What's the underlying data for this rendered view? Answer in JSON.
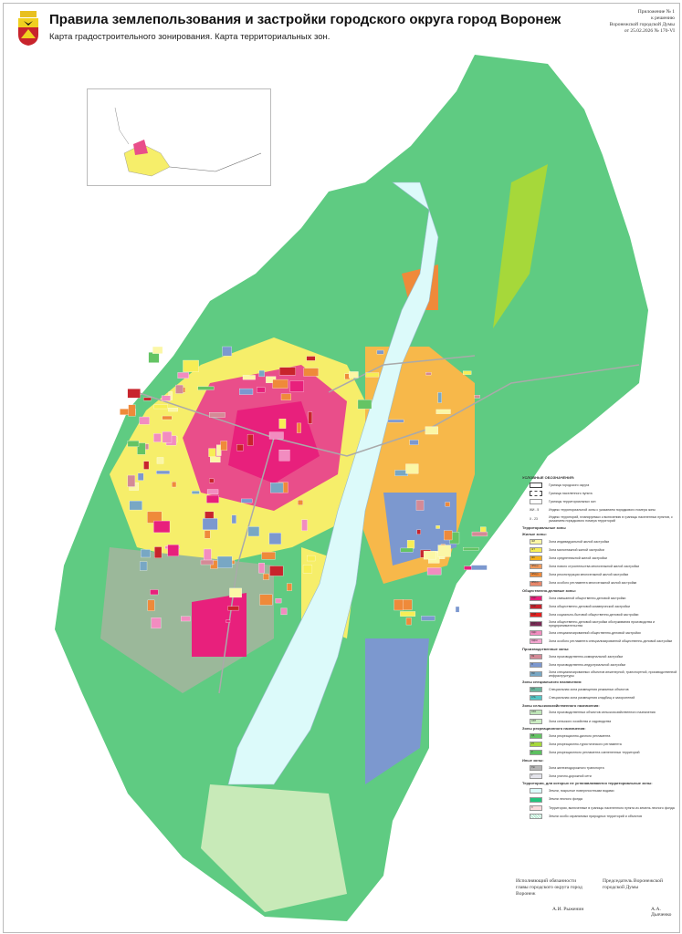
{
  "header": {
    "title": "Правила землепользования и застройки городского округа город Воронеж",
    "subtitle": "Карта градостроительного зонирования. Карта территориальных зон.",
    "appendix": [
      "Приложение № 1",
      "к решению",
      "Воронежской городской Думы",
      "от 25.02.2026   № 170-VI"
    ]
  },
  "legend": {
    "title": "УСЛОВНЫЕ ОБОЗНАЧЕНИЯ:",
    "boundaries": [
      {
        "label": "Граница городского округа"
      },
      {
        "label": "Граница населенного пункта"
      },
      {
        "label": "Границы территориальных зон"
      }
    ],
    "indexes": [
      {
        "code": "ЖИ - 5",
        "label": "Индекс территориальной зоны с указанием порядкового номера зоны"
      },
      {
        "code": "Х - 23",
        "label": "Индекс территорий, планируемых к включению в границы населенных пунктов, с указанием порядкового номера территорий"
      }
    ],
    "zones_title": "Территориальные зоны",
    "groups": [
      {
        "title": "Жилые зоны:",
        "items": [
          {
            "code": "ЖИ",
            "color": "#fbf7a6",
            "label": "Зона индивидуальной жилой застройки"
          },
          {
            "code": "ЖТ",
            "color": "#f7ee55",
            "label": "Зона малоэтажной жилой застройки"
          },
          {
            "code": "ЖС",
            "color": "#f5b21a",
            "label": "Зона среднеэтажной жилой застройки"
          },
          {
            "code": "ЖМ(н)",
            "color": "#f19a5c",
            "label": "Зона нового строительства многоэтажной жилой застройки"
          },
          {
            "code": "ЖМ(р)",
            "color": "#ef8a3a",
            "label": "Зона реконструкции многоэтажной жилой застройки"
          },
          {
            "code": "ЖМ(о)",
            "color": "#e8876a",
            "label": "Зона особого регламента многоэтажной жилой застройки"
          }
        ]
      },
      {
        "title": "Общественно-деловые зоны:",
        "items": [
          {
            "code": "ОДС",
            "color": "#e8207c",
            "label": "Зона смешанной общественно-деловой застройки"
          },
          {
            "code": "ОДК",
            "color": "#c8242c",
            "label": "Зона общественно-деловой коммерческой застройки"
          },
          {
            "code": "ОДБ",
            "color": "#e5201f",
            "label": "Зона социально-бытовой общественно-деловой застройки"
          },
          {
            "code": "ОДП",
            "color": "#7a2a55",
            "label": "Зона общественно-деловой застройки обслуживания производства и предпринимательства"
          },
          {
            "code": "ОДС",
            "color": "#f28cc0",
            "label": "Зона специализированной общественно-деловой застройки"
          },
          {
            "code": "ОДСо",
            "color": "#f4a6d0",
            "label": "Зона особого регламента специализированной общественно-деловой застройки"
          }
        ]
      },
      {
        "title": "Производственные зоны:",
        "items": [
          {
            "code": "ПК",
            "color": "#d48a96",
            "label": "Зона производственно-коммунальной застройки"
          },
          {
            "code": "П",
            "color": "#7c98cf",
            "label": "Зона производственно-индустриальной застройки"
          },
          {
            "code": "ПИ",
            "color": "#78a7c4",
            "label": "Зона специализированных объектов инженерной, транспортной, производственной инфраструктуры"
          }
        ]
      },
      {
        "title": "Зоны специального назначения:",
        "items": [
          {
            "code": "СН",
            "color": "#6ab59c",
            "label": "Специальная зона размещения режимных объектов"
          },
          {
            "code": "СНк",
            "color": "#52c6c6",
            "label": "Специальная зона размещения кладбищ и захоронений"
          }
        ]
      },
      {
        "title": "Зоны сельскохозяйственного назначения:",
        "items": [
          {
            "code": "СХО",
            "color": "#bfe6b8",
            "label": "Зона производственных объектов сельскохозяйственного назначения"
          },
          {
            "code": "СХП",
            "color": "#cdeec4",
            "label": "Зона сельского хозяйства и садоводства"
          }
        ]
      },
      {
        "title": "Зоны рекреационного назначения:",
        "items": [
          {
            "code": "РД",
            "color": "#64c464",
            "label": "Зона рекреационно-дачного регламента"
          },
          {
            "code": "РТ",
            "color": "#a6d83a",
            "label": "Зона рекреационно-туристического регламента"
          },
          {
            "code": "Р",
            "color": "#5cc060",
            "label": "Зона рекреационного регламента озелененных территорий"
          }
        ]
      },
      {
        "title": "Иные зоны:",
        "items": [
          {
            "code": "ТЖ",
            "color": "#b4b4b4",
            "label": "Зона железнодорожного транспорта"
          },
          {
            "code": "Т",
            "color": "#e4e4ec",
            "label": "Зона улично-дорожной сети"
          }
        ]
      },
      {
        "title": "Территории, для которых не устанавливаются территориальные зоны:",
        "items": [
          {
            "code": "",
            "color": "#dcfafa",
            "label": "Земли, покрытые поверхностными водами"
          },
          {
            "code": "",
            "color": "#22c47c",
            "label": "Земли лесного фонда"
          },
          {
            "code": "Х",
            "color": "#fadadd",
            "label": "Территории, включенные в границы населенного пункта из земель лесного фонда"
          },
          {
            "code": "",
            "color": "#a8e4c8",
            "label": "Земли особо охраняемых природных территорий и объектов"
          }
        ]
      }
    ]
  },
  "signatures": {
    "left_position": "Исполняющий обязанности главы городского округа город Воронеж",
    "left_name": "А.И. Рыженин",
    "right_position": "Председатель Воронежской городской Думы",
    "right_name": "А.А. Дьяченко"
  }
}
